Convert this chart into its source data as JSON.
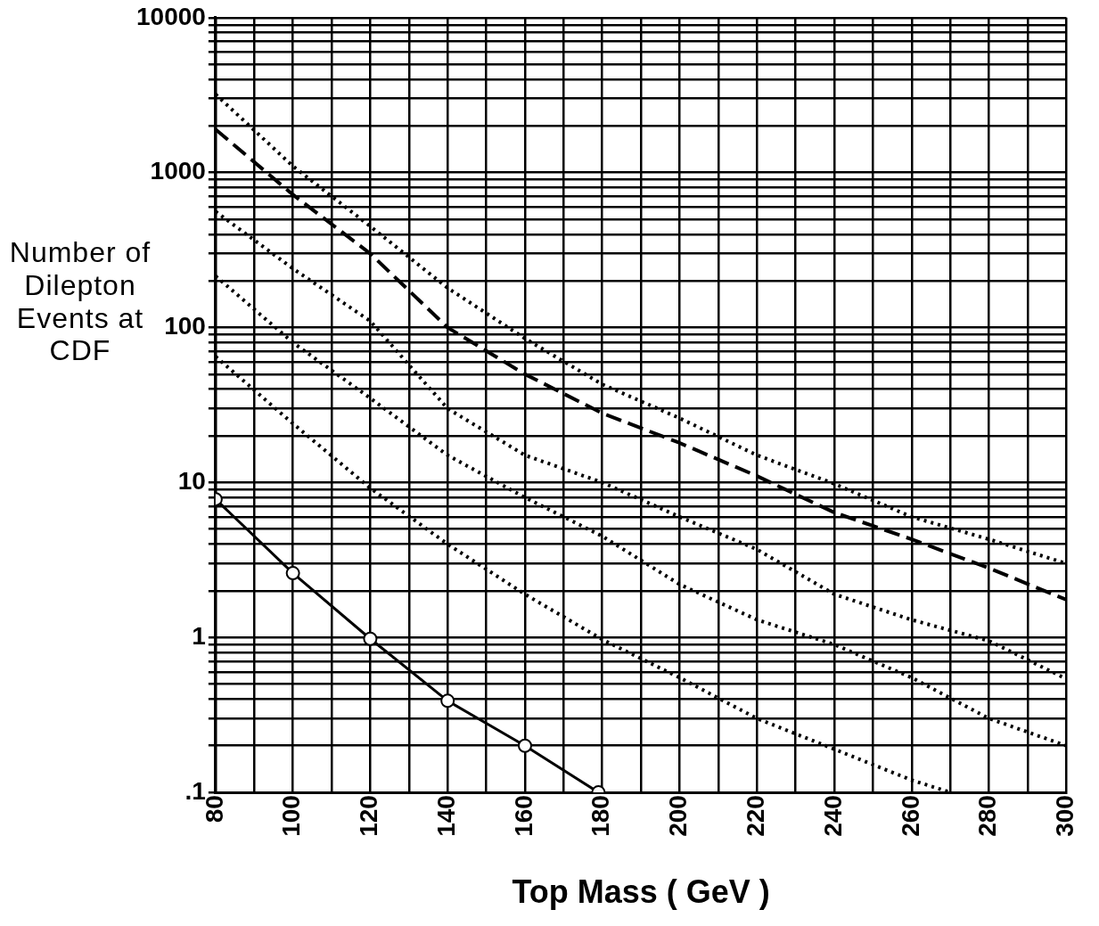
{
  "chart_data": {
    "type": "line",
    "xlabel": "Top Mass ( GeV )",
    "ylabel": "Number of Dilepton Events at CDF",
    "log": "y",
    "grid": true,
    "legend": false,
    "xlim": [
      80,
      300
    ],
    "ylim": [
      0.1,
      10000
    ],
    "xticks": [
      80,
      {
        "value": 90,
        "label": null
      },
      100,
      {
        "value": 110,
        "label": null
      },
      120,
      {
        "value": 130,
        "label": null
      },
      140,
      {
        "value": 150,
        "label": null
      },
      160,
      {
        "value": 170,
        "label": null
      },
      180,
      {
        "value": 190,
        "label": null
      },
      200,
      {
        "value": 210,
        "label": null
      },
      220,
      {
        "value": 230,
        "label": null
      },
      240,
      {
        "value": 250,
        "label": null
      },
      260,
      {
        "value": 270,
        "label": null
      },
      280,
      {
        "value": 290,
        "label": null
      },
      300
    ],
    "yticks": [
      {
        "value": 0.1,
        "label": ".1"
      },
      {
        "value": 0.2,
        "label": null
      },
      {
        "value": 0.3,
        "label": null
      },
      {
        "value": 0.4,
        "label": null
      },
      {
        "value": 0.5,
        "label": null
      },
      {
        "value": 0.6,
        "label": null
      },
      {
        "value": 0.7,
        "label": null
      },
      {
        "value": 0.8,
        "label": null
      },
      {
        "value": 0.9,
        "label": null
      },
      1,
      {
        "value": 2,
        "label": null
      },
      {
        "value": 3,
        "label": null
      },
      {
        "value": 4,
        "label": null
      },
      {
        "value": 5,
        "label": null
      },
      {
        "value": 6,
        "label": null
      },
      {
        "value": 7,
        "label": null
      },
      {
        "value": 8,
        "label": null
      },
      {
        "value": 9,
        "label": null
      },
      10,
      {
        "value": 20,
        "label": null
      },
      {
        "value": 30,
        "label": null
      },
      {
        "value": 40,
        "label": null
      },
      {
        "value": 50,
        "label": null
      },
      {
        "value": 60,
        "label": null
      },
      {
        "value": 70,
        "label": null
      },
      {
        "value": 80,
        "label": null
      },
      {
        "value": 90,
        "label": null
      },
      100,
      {
        "value": 200,
        "label": null
      },
      {
        "value": 300,
        "label": null
      },
      {
        "value": 400,
        "label": null
      },
      {
        "value": 500,
        "label": null
      },
      {
        "value": 600,
        "label": null
      },
      {
        "value": 700,
        "label": null
      },
      {
        "value": 800,
        "label": null
      },
      {
        "value": 900,
        "label": null
      },
      1000,
      {
        "value": 2000,
        "label": null
      },
      {
        "value": 3000,
        "label": null
      },
      {
        "value": 4000,
        "label": null
      },
      {
        "value": 5000,
        "label": null
      },
      {
        "value": 6000,
        "label": null
      },
      {
        "value": 7000,
        "label": null
      },
      {
        "value": 8000,
        "label": null
      },
      {
        "value": 9000,
        "label": null
      },
      10000
    ],
    "x": [
      80,
      100,
      120,
      140,
      160,
      180,
      200,
      220,
      240,
      260,
      280,
      300
    ],
    "series": [
      {
        "color": "#000000",
        "line_style": "dotted",
        "marker": "none",
        "values": [
          3200,
          1100,
          450,
          180,
          85,
          43,
          26,
          15,
          9.8,
          6,
          4.3,
          3
        ]
      },
      {
        "color": "#000000",
        "line_style": "dashed",
        "marker": "none",
        "values": [
          1900,
          720,
          300,
          100,
          50,
          28,
          18,
          11,
          6.4,
          4.3,
          2.8,
          1.75
        ]
      },
      {
        "color": "#000000",
        "line_style": "dotted",
        "marker": "none",
        "values": [
          560,
          240,
          110,
          30,
          15,
          10,
          6,
          3.7,
          1.9,
          1.3,
          0.95,
          0.54
        ]
      },
      {
        "color": "#000000",
        "line_style": "dotted",
        "marker": "none",
        "values": [
          215,
          80,
          35,
          15,
          8,
          4.5,
          2.2,
          1.3,
          0.9,
          0.55,
          0.3,
          0.2
        ]
      },
      {
        "color": "#000000",
        "line_style": "dotted",
        "marker": "none",
        "x": [
          80,
          100,
          120,
          140,
          160,
          180,
          200,
          220,
          240,
          260,
          270
        ],
        "values": [
          65,
          24,
          9.2,
          4,
          1.9,
          0.97,
          0.55,
          0.3,
          0.19,
          0.12,
          0.1
        ]
      },
      {
        "color": "#000000",
        "line_style": "solid",
        "marker": "circle",
        "x": [
          80,
          100,
          120,
          140,
          160,
          179
        ],
        "values": [
          7.8,
          2.6,
          0.98,
          0.39,
          0.2,
          0.1
        ]
      }
    ]
  }
}
